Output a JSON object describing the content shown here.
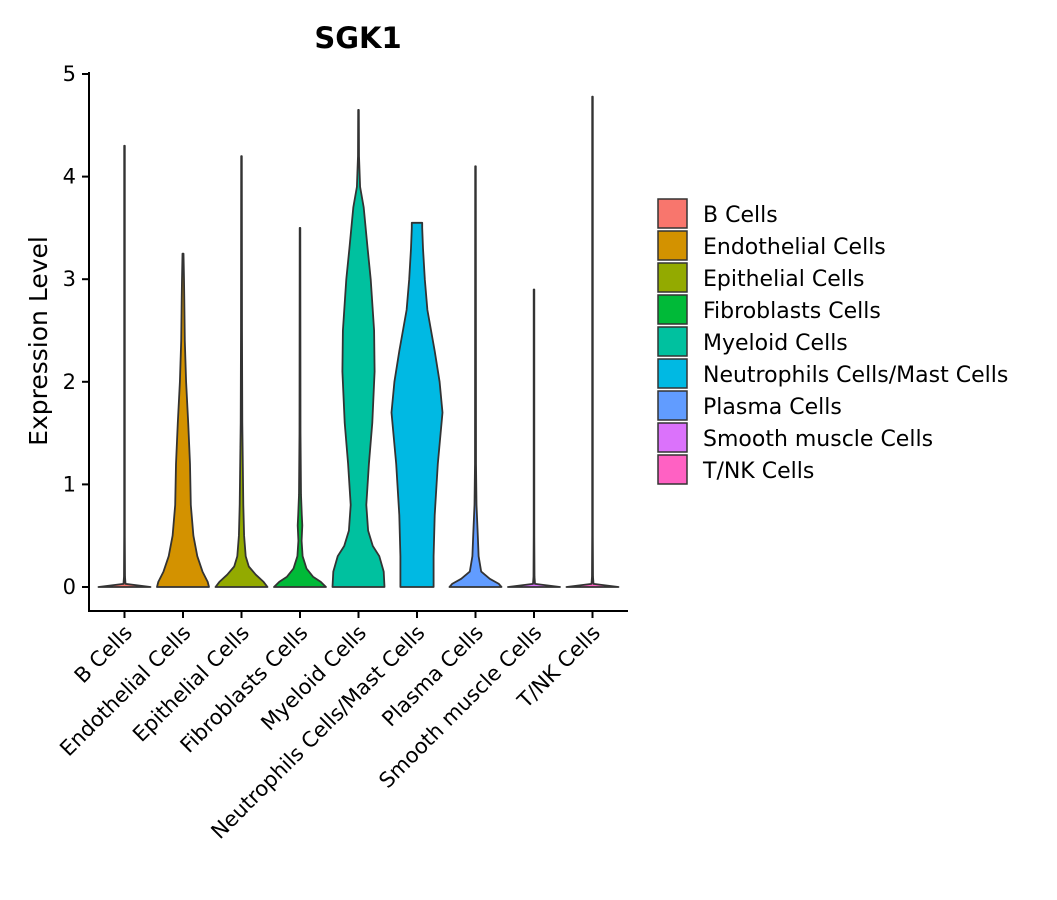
{
  "chart_data": {
    "type": "violin",
    "title": "SGK1",
    "xlabel": "",
    "ylabel": "Expression Level",
    "ylim": [
      -0.22,
      5.12
    ],
    "yticks": [
      0,
      1,
      2,
      3,
      4,
      5
    ],
    "grid": false,
    "legend_position": "right",
    "categories": [
      "B Cells",
      "Endothelial Cells",
      "Epithelial Cells",
      "Fibroblasts Cells",
      "Myeloid Cells",
      "Neutrophils Cells/Mast Cells",
      "Plasma Cells",
      "Smooth muscle Cells",
      "T/NK Cells"
    ],
    "series": [
      {
        "name": "B Cells",
        "color": "#F8766D",
        "max": 4.3,
        "profile": [
          [
            0,
            1.0
          ],
          [
            0.03,
            0.04
          ],
          [
            0.1,
            0.02
          ],
          [
            0.5,
            0.01
          ],
          [
            4.3,
            0.01
          ]
        ]
      },
      {
        "name": "Endothelial Cells",
        "color": "#D39200",
        "max": 3.25,
        "profile": [
          [
            0,
            1.0
          ],
          [
            0.05,
            0.95
          ],
          [
            0.15,
            0.75
          ],
          [
            0.3,
            0.55
          ],
          [
            0.5,
            0.4
          ],
          [
            0.8,
            0.3
          ],
          [
            1.2,
            0.27
          ],
          [
            1.6,
            0.2
          ],
          [
            2.0,
            0.12
          ],
          [
            2.4,
            0.07
          ],
          [
            2.8,
            0.05
          ],
          [
            3.0,
            0.04
          ],
          [
            3.25,
            0.02
          ]
        ]
      },
      {
        "name": "Epithelial Cells",
        "color": "#93AA00",
        "max": 4.2,
        "profile": [
          [
            0,
            1.0
          ],
          [
            0.05,
            0.85
          ],
          [
            0.12,
            0.55
          ],
          [
            0.2,
            0.28
          ],
          [
            0.3,
            0.16
          ],
          [
            0.5,
            0.1
          ],
          [
            0.8,
            0.07
          ],
          [
            1.2,
            0.05
          ],
          [
            1.6,
            0.03
          ],
          [
            2.5,
            0.02
          ],
          [
            4.2,
            0.01
          ]
        ]
      },
      {
        "name": "Fibroblasts Cells",
        "color": "#00BA38",
        "max": 3.5,
        "profile": [
          [
            0,
            1.0
          ],
          [
            0.05,
            0.8
          ],
          [
            0.1,
            0.5
          ],
          [
            0.18,
            0.25
          ],
          [
            0.3,
            0.1
          ],
          [
            0.45,
            0.06
          ],
          [
            0.6,
            0.09
          ],
          [
            0.7,
            0.07
          ],
          [
            0.9,
            0.04
          ],
          [
            1.5,
            0.02
          ],
          [
            3.5,
            0.01
          ]
        ]
      },
      {
        "name": "Myeloid Cells",
        "color": "#00C19F",
        "max": 4.65,
        "profile": [
          [
            0,
            1.0
          ],
          [
            0.15,
            0.97
          ],
          [
            0.3,
            0.8
          ],
          [
            0.4,
            0.55
          ],
          [
            0.55,
            0.37
          ],
          [
            0.8,
            0.3
          ],
          [
            1.2,
            0.4
          ],
          [
            1.6,
            0.53
          ],
          [
            2.1,
            0.62
          ],
          [
            2.5,
            0.6
          ],
          [
            3.0,
            0.47
          ],
          [
            3.3,
            0.35
          ],
          [
            3.7,
            0.2
          ],
          [
            3.9,
            0.06
          ],
          [
            4.2,
            0.02
          ],
          [
            4.65,
            0.01
          ]
        ]
      },
      {
        "name": "Neutrophils Cells/Mast Cells",
        "color": "#00B9E3",
        "max": 3.55,
        "profile": [
          [
            0,
            0.64
          ],
          [
            0.3,
            0.64
          ],
          [
            0.7,
            0.68
          ],
          [
            1.2,
            0.8
          ],
          [
            1.7,
            0.98
          ],
          [
            2.0,
            0.87
          ],
          [
            2.3,
            0.68
          ],
          [
            2.7,
            0.4
          ],
          [
            3.0,
            0.3
          ],
          [
            3.3,
            0.23
          ],
          [
            3.5,
            0.2
          ],
          [
            3.55,
            0.2
          ]
        ]
      },
      {
        "name": "Plasma Cells",
        "color": "#619CFF",
        "max": 4.1,
        "profile": [
          [
            0,
            1.0
          ],
          [
            0.03,
            0.9
          ],
          [
            0.08,
            0.55
          ],
          [
            0.15,
            0.22
          ],
          [
            0.3,
            0.12
          ],
          [
            0.5,
            0.09
          ],
          [
            0.8,
            0.04
          ],
          [
            1.2,
            0.02
          ],
          [
            4.1,
            0.01
          ]
        ]
      },
      {
        "name": "Smooth muscle Cells",
        "color": "#DB72FB",
        "max": 2.9,
        "profile": [
          [
            0,
            1.0
          ],
          [
            0.03,
            0.04
          ],
          [
            0.1,
            0.02
          ],
          [
            0.5,
            0.01
          ],
          [
            2.9,
            0.01
          ]
        ]
      },
      {
        "name": "T/NK Cells",
        "color": "#FF61C3",
        "max": 4.78,
        "profile": [
          [
            0,
            1.0
          ],
          [
            0.03,
            0.04
          ],
          [
            0.1,
            0.02
          ],
          [
            0.5,
            0.01
          ],
          [
            4.78,
            0.01
          ]
        ]
      }
    ]
  }
}
